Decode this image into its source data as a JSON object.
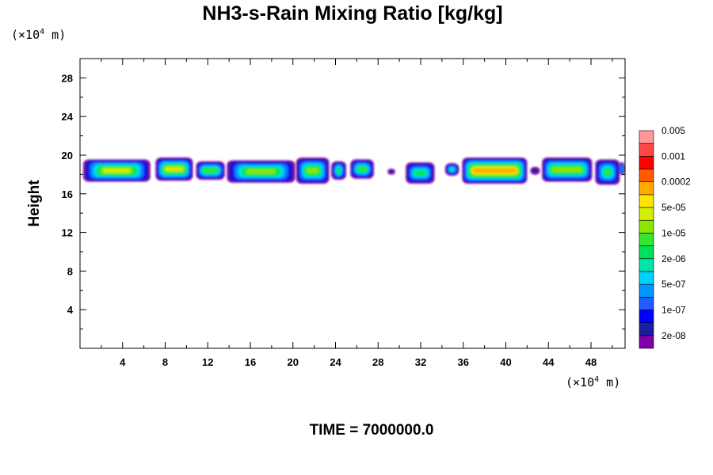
{
  "chart_data": {
    "type": "heatmap",
    "title": "NH3-s-Rain Mixing Ratio [kg/kg]",
    "y_unit_label": "(×10",
    "y_unit_exp": "4",
    "y_unit_suffix": " m)",
    "x_unit_label": "(×10",
    "x_unit_exp": "4",
    "x_unit_suffix": " m)",
    "ylabel": "Height",
    "time_label": "TIME = 7000000.0",
    "xlim": [
      0,
      51.2
    ],
    "ylim": [
      0,
      30
    ],
    "x_ticks": [
      4,
      8,
      12,
      16,
      20,
      24,
      28,
      32,
      36,
      40,
      44,
      48
    ],
    "x_tick_labels": [
      "4",
      "8",
      "12",
      "16",
      "20",
      "24",
      "28",
      "32",
      "36",
      "40",
      "44",
      "48"
    ],
    "y_ticks": [
      4,
      8,
      12,
      16,
      20,
      24,
      28
    ],
    "y_tick_labels": [
      "4",
      "8",
      "12",
      "16",
      "20",
      "24",
      "28"
    ],
    "colorbar": {
      "colors": [
        "#7f00a8",
        "#1c1c9e",
        "#0000ff",
        "#1e5cff",
        "#0096ff",
        "#00d2ff",
        "#00e6aa",
        "#00e05a",
        "#32e632",
        "#8ce600",
        "#d2f000",
        "#ffe600",
        "#ffaa00",
        "#ff5a00",
        "#ff0000",
        "#ff4646",
        "#ff9696"
      ],
      "labels": [
        "2e-08",
        "1e-07",
        "5e-07",
        "2e-06",
        "1e-05",
        "5e-05",
        "0.0002",
        "0.001",
        "0.005"
      ]
    },
    "cells": [
      {
        "x0": 0.3,
        "x1": 6.6,
        "y0": 17.3,
        "y1": 19.6,
        "level": 10
      },
      {
        "x0": 7.1,
        "x1": 10.6,
        "y0": 17.4,
        "y1": 19.8,
        "level": 10
      },
      {
        "x0": 10.9,
        "x1": 13.6,
        "y0": 17.5,
        "y1": 19.4,
        "level": 8
      },
      {
        "x0": 13.8,
        "x1": 20.2,
        "y0": 17.2,
        "y1": 19.5,
        "level": 9
      },
      {
        "x0": 20.3,
        "x1": 23.4,
        "y0": 17.1,
        "y1": 19.8,
        "level": 9
      },
      {
        "x0": 23.6,
        "x1": 25.0,
        "y0": 17.5,
        "y1": 19.4,
        "level": 7
      },
      {
        "x0": 25.4,
        "x1": 27.6,
        "y0": 17.6,
        "y1": 19.6,
        "level": 8
      },
      {
        "x0": 28.9,
        "x1": 29.6,
        "y0": 18.0,
        "y1": 18.6,
        "level": 1
      },
      {
        "x0": 30.6,
        "x1": 33.3,
        "y0": 17.1,
        "y1": 19.3,
        "level": 7
      },
      {
        "x0": 34.3,
        "x1": 35.6,
        "y0": 17.9,
        "y1": 19.2,
        "level": 6
      },
      {
        "x0": 35.9,
        "x1": 42.0,
        "y0": 17.1,
        "y1": 19.8,
        "level": 12
      },
      {
        "x0": 42.3,
        "x1": 43.2,
        "y0": 18.0,
        "y1": 18.8,
        "level": 1
      },
      {
        "x0": 43.4,
        "x1": 48.1,
        "y0": 17.3,
        "y1": 19.8,
        "level": 9
      },
      {
        "x0": 48.4,
        "x1": 50.7,
        "y0": 17.0,
        "y1": 19.6,
        "level": 8
      },
      {
        "x0": 50.6,
        "x1": 51.2,
        "y0": 18.0,
        "y1": 19.3,
        "level": 4
      }
    ]
  }
}
